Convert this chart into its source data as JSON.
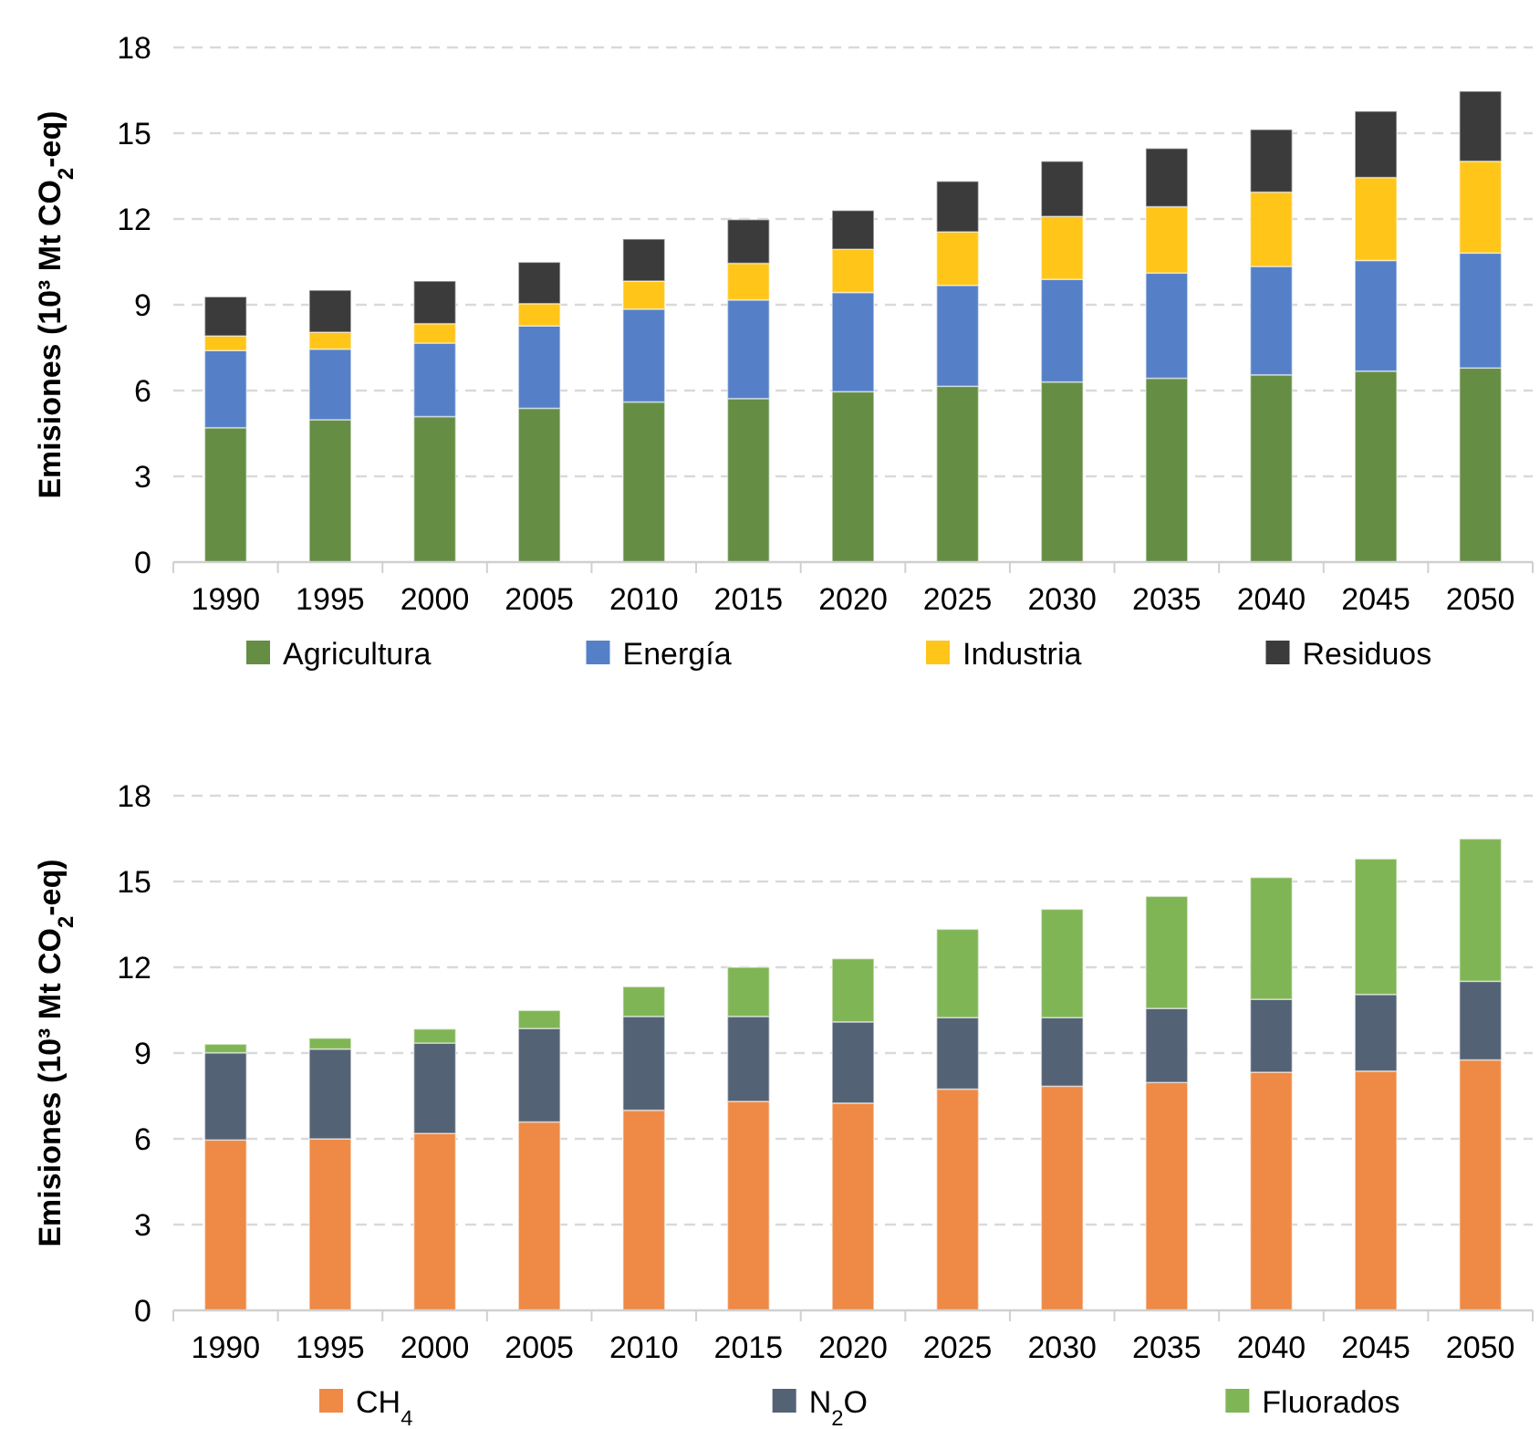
{
  "chart_data": [
    {
      "type": "bar",
      "stacked": true,
      "ylabel": "Emisiones (10³ Mt CO$_{2}$-eq)",
      "categories": [
        "1990",
        "1995",
        "2000",
        "2005",
        "2010",
        "2015",
        "2020",
        "2025",
        "2030",
        "2035",
        "2040",
        "2045",
        "2050"
      ],
      "ylim": [
        0,
        18
      ],
      "yticks": [
        0,
        3,
        6,
        9,
        12,
        15,
        18
      ],
      "grid": "y",
      "legend": "bottom",
      "series": [
        {
          "name": "Agricultura",
          "color": "#658e44",
          "values": [
            4.7,
            4.98,
            5.09,
            5.38,
            5.6,
            5.72,
            5.96,
            6.15,
            6.3,
            6.43,
            6.55,
            6.68,
            6.79
          ]
        },
        {
          "name": "Energía",
          "color": "#5580c8",
          "values": [
            2.7,
            2.47,
            2.57,
            2.88,
            3.25,
            3.45,
            3.47,
            3.53,
            3.59,
            3.68,
            3.79,
            3.87,
            4.02
          ]
        },
        {
          "name": "Industria",
          "color": "#ffc519",
          "values": [
            0.51,
            0.59,
            0.68,
            0.78,
            0.98,
            1.28,
            1.51,
            1.87,
            2.2,
            2.32,
            2.6,
            2.9,
            3.21
          ]
        },
        {
          "name": "Residuos",
          "color": "#3b3b3b",
          "values": [
            1.37,
            1.47,
            1.49,
            1.45,
            1.47,
            1.53,
            1.36,
            1.77,
            1.93,
            2.04,
            2.19,
            2.32,
            2.45
          ]
        }
      ]
    },
    {
      "type": "bar",
      "stacked": true,
      "ylabel": "Emisiones  (10³ Mt CO$_{2}$-eq)",
      "categories": [
        "1990",
        "1995",
        "2000",
        "2005",
        "2010",
        "2015",
        "2020",
        "2025",
        "2030",
        "2035",
        "2040",
        "2045",
        "2050"
      ],
      "ylim": [
        0,
        18
      ],
      "yticks": [
        0,
        3,
        6,
        9,
        12,
        15,
        18
      ],
      "grid": "y",
      "legend": "bottom",
      "series": [
        {
          "name": "CH$_{4}$",
          "color": "#ee8a45",
          "values": [
            5.96,
            6.0,
            6.19,
            6.59,
            7.0,
            7.31,
            7.25,
            7.74,
            7.84,
            7.97,
            8.33,
            8.37,
            8.76
          ]
        },
        {
          "name": "N$_{2}$O",
          "color": "#546275",
          "values": [
            3.05,
            3.14,
            3.16,
            3.27,
            3.28,
            2.97,
            2.84,
            2.5,
            2.4,
            2.59,
            2.55,
            2.68,
            2.75
          ]
        },
        {
          "name": "Fluorados",
          "color": "#80b555",
          "values": [
            0.3,
            0.38,
            0.49,
            0.63,
            1.04,
            1.72,
            2.21,
            3.09,
            3.79,
            3.92,
            4.26,
            4.74,
            4.98
          ]
        }
      ]
    }
  ]
}
